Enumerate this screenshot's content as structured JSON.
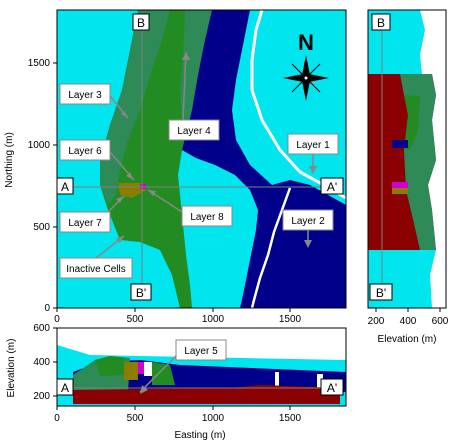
{
  "plan_view": {
    "y_axis_label": "Northing (m)",
    "y_ticks": [
      "0",
      "500",
      "1000",
      "1500"
    ],
    "x_ticks": [
      "0",
      "500",
      "1000",
      "1500"
    ],
    "north_label": "N",
    "layer_labels": [
      "Layer 1",
      "Layer 2",
      "Layer 3",
      "Layer 4",
      "Layer 6",
      "Layer 7",
      "Layer 8",
      "Inactive Cells"
    ],
    "section_markers": [
      "A",
      "A'",
      "B",
      "B'"
    ]
  },
  "section_b": {
    "x_axis_label": "Elevation (m)",
    "x_ticks": [
      "200",
      "400",
      "600"
    ],
    "section_markers": [
      "B",
      "B'"
    ]
  },
  "section_a": {
    "y_axis_label": "Elevation (m)",
    "x_axis_label": "Easting (m)",
    "y_ticks": [
      "200",
      "400",
      "600"
    ],
    "x_ticks": [
      "0",
      "500",
      "1000",
      "1500"
    ],
    "layer_label": "Layer 5",
    "section_markers": [
      "A",
      "A'"
    ]
  },
  "colors": {
    "inactive": "#00e5ee",
    "layer1": "#00008b",
    "layer2": "#00008b",
    "layer3": "#2e8b57",
    "layer4": "#228b22",
    "layer5": "#8b0000",
    "layer6": "#2e8b1e",
    "layer7": "#8b7d00",
    "layer8": "#d000d0",
    "stream": "#ffffff"
  }
}
